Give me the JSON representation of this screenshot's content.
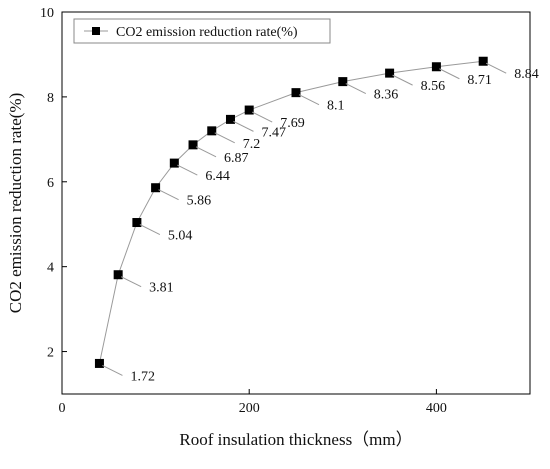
{
  "chart_data": {
    "type": "line",
    "xlabel": "Roof insulation thickness（mm）",
    "ylabel": "CO2 emission reduction rate(%)",
    "xlim": [
      0,
      500
    ],
    "ylim": [
      1,
      10
    ],
    "x_ticks": [
      0,
      200,
      400
    ],
    "y_ticks": [
      2,
      4,
      6,
      8,
      10
    ],
    "grid": false,
    "legend_position": "top-left",
    "series": [
      {
        "name": "CO2 emission reduction rate(%)",
        "marker": "square",
        "color": "#000000",
        "line_color": "#9a9a9a",
        "x": [
          40,
          60,
          80,
          100,
          120,
          140,
          160,
          180,
          200,
          250,
          300,
          350,
          400,
          450
        ],
        "values": [
          1.72,
          3.81,
          5.04,
          5.86,
          6.44,
          6.87,
          7.2,
          7.47,
          7.69,
          8.1,
          8.36,
          8.56,
          8.71,
          8.84
        ],
        "labels": [
          "1.72",
          "3.81",
          "5.04",
          "5.86",
          "6.44",
          "6.87",
          "7.2",
          "7.47",
          "7.69",
          "8.1",
          "8.36",
          "8.56",
          "8.71",
          "8.84"
        ]
      }
    ]
  }
}
